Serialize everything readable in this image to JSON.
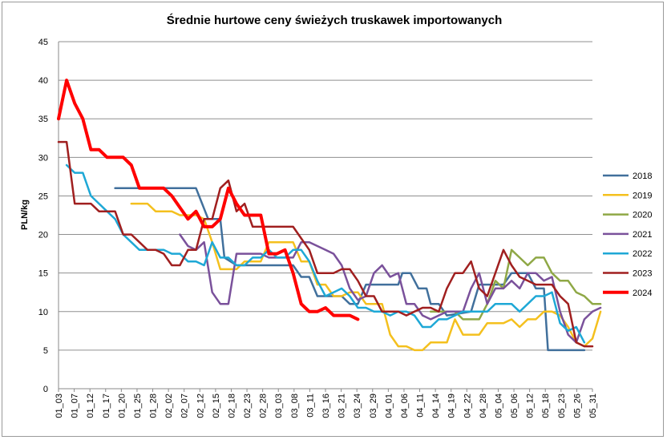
{
  "chart_data": {
    "type": "line",
    "title": "Średnie hurtowe ceny świeżych truskawek importowanych",
    "xlabel": "",
    "ylabel": "PLN/kg",
    "ylim": [
      0,
      45
    ],
    "yticks": [
      0,
      5,
      10,
      15,
      20,
      25,
      30,
      35,
      40,
      45
    ],
    "grid": true,
    "legend": "right",
    "x_ticks": [
      "01_03",
      "01_07",
      "01_12",
      "01_17",
      "01_20",
      "01_25",
      "01_28",
      "02_02",
      "02_07",
      "02_12",
      "02_15",
      "02_18",
      "02_23",
      "02_28",
      "03_03",
      "03_08",
      "03_11",
      "03_16",
      "03_21",
      "03_24",
      "03_29",
      "04_01",
      "04_06",
      "04_11",
      "04_14",
      "04_19",
      "04_22",
      "04_28",
      "05_04",
      "05_06",
      "05_12",
      "05_18",
      "05_23",
      "05_26",
      "05_31"
    ],
    "series": [
      {
        "name": "2018",
        "color": "#41709c",
        "width": 2.5,
        "points": [
          [
            7,
            26
          ],
          [
            17,
            26
          ],
          [
            18.5,
            22
          ],
          [
            20,
            22
          ],
          [
            20.5,
            17
          ],
          [
            22,
            16
          ],
          [
            29,
            16
          ],
          [
            30,
            14.5
          ],
          [
            31,
            14.5
          ],
          [
            32,
            12
          ],
          [
            35,
            12
          ],
          [
            36,
            11
          ],
          [
            37,
            11
          ],
          [
            38,
            13.5
          ],
          [
            42,
            13.5
          ],
          [
            42.5,
            15
          ],
          [
            43.5,
            15
          ],
          [
            44.5,
            13
          ],
          [
            45.5,
            13
          ],
          [
            46,
            11
          ],
          [
            47,
            11
          ],
          [
            48,
            9.5
          ],
          [
            51,
            10
          ],
          [
            52,
            13.5
          ],
          [
            55,
            13.5
          ],
          [
            56,
            15
          ],
          [
            58,
            15
          ],
          [
            59,
            13
          ],
          [
            60,
            13
          ],
          [
            60.5,
            5
          ],
          [
            65,
            5
          ]
        ]
      },
      {
        "name": "2019",
        "color": "#f4c01e",
        "width": 2.5,
        "points": [
          [
            9,
            24
          ],
          [
            11,
            24
          ],
          [
            12,
            23
          ],
          [
            14,
            23
          ],
          [
            15,
            22.5
          ],
          [
            17,
            22.5
          ],
          [
            18,
            22
          ],
          [
            19,
            19
          ],
          [
            20,
            15.5
          ],
          [
            22,
            15.5
          ],
          [
            23,
            16.5
          ],
          [
            25,
            16.5
          ],
          [
            26,
            19
          ],
          [
            29,
            19
          ],
          [
            30,
            16.5
          ],
          [
            31,
            16.5
          ],
          [
            32,
            13.5
          ],
          [
            33,
            13.5
          ],
          [
            34,
            12
          ],
          [
            35,
            12
          ],
          [
            36,
            12.5
          ],
          [
            37,
            12.5
          ],
          [
            38,
            11
          ],
          [
            39,
            11
          ],
          [
            40,
            11
          ],
          [
            41,
            7
          ],
          [
            42,
            5.5
          ],
          [
            43,
            5.5
          ],
          [
            44,
            5
          ],
          [
            45,
            5
          ],
          [
            46,
            6
          ],
          [
            48,
            6
          ],
          [
            49,
            9
          ],
          [
            50,
            7
          ],
          [
            52,
            7
          ],
          [
            53,
            8.5
          ],
          [
            55,
            8.5
          ],
          [
            56,
            9
          ],
          [
            57,
            8
          ],
          [
            58,
            9
          ],
          [
            59,
            9
          ],
          [
            60,
            10
          ],
          [
            61,
            10
          ],
          [
            62,
            9.5
          ],
          [
            63,
            8
          ],
          [
            64,
            6
          ],
          [
            65,
            5.5
          ],
          [
            66,
            6.5
          ],
          [
            67,
            10
          ]
        ]
      },
      {
        "name": "2020",
        "color": "#8fa846",
        "width": 2.5,
        "points": [
          [
            46,
            10
          ],
          [
            49,
            10
          ],
          [
            50,
            9
          ],
          [
            52,
            9
          ],
          [
            53,
            11
          ],
          [
            54,
            14
          ],
          [
            55,
            13
          ],
          [
            56,
            18
          ],
          [
            57,
            17
          ],
          [
            58,
            16
          ],
          [
            59,
            17
          ],
          [
            60,
            17
          ],
          [
            61,
            15
          ],
          [
            62,
            14
          ],
          [
            63,
            14
          ],
          [
            64,
            12.5
          ],
          [
            65,
            12
          ],
          [
            66,
            11
          ],
          [
            67,
            11
          ]
        ]
      },
      {
        "name": "2021",
        "color": "#7a519b",
        "width": 2.5,
        "points": [
          [
            15,
            20
          ],
          [
            16,
            18.5
          ],
          [
            17,
            18
          ],
          [
            18,
            19
          ],
          [
            19,
            12.5
          ],
          [
            20,
            11
          ],
          [
            21,
            11
          ],
          [
            22,
            17.5
          ],
          [
            25,
            17.5
          ],
          [
            26,
            17
          ],
          [
            29,
            17
          ],
          [
            30,
            19
          ],
          [
            31,
            19
          ],
          [
            32,
            18.5
          ],
          [
            33,
            18
          ],
          [
            34,
            17.5
          ],
          [
            35,
            16
          ],
          [
            36,
            13
          ],
          [
            37,
            11.5
          ],
          [
            38,
            12
          ],
          [
            39,
            15
          ],
          [
            40,
            16
          ],
          [
            41,
            14.5
          ],
          [
            42,
            15
          ],
          [
            43,
            11
          ],
          [
            44,
            11
          ],
          [
            45,
            9.5
          ],
          [
            46,
            9
          ],
          [
            47,
            9.5
          ],
          [
            48,
            10
          ],
          [
            50,
            10
          ],
          [
            51,
            13
          ],
          [
            52,
            15
          ],
          [
            53,
            11
          ],
          [
            54,
            13
          ],
          [
            55,
            13
          ],
          [
            56,
            14
          ],
          [
            57,
            13
          ],
          [
            58,
            15
          ],
          [
            59,
            15
          ],
          [
            60,
            14
          ],
          [
            61,
            14.5
          ],
          [
            62,
            10
          ],
          [
            63,
            7
          ],
          [
            64,
            6
          ],
          [
            65,
            9
          ],
          [
            66,
            10
          ],
          [
            67,
            10.5
          ]
        ]
      },
      {
        "name": "2022",
        "color": "#1ea8d6",
        "width": 2.5,
        "points": [
          [
            1,
            29
          ],
          [
            2,
            28
          ],
          [
            3,
            28
          ],
          [
            4,
            25
          ],
          [
            5,
            24
          ],
          [
            6,
            23
          ],
          [
            7,
            22
          ],
          [
            8,
            20
          ],
          [
            9,
            19
          ],
          [
            10,
            18
          ],
          [
            13,
            18
          ],
          [
            14,
            17.5
          ],
          [
            15,
            17.5
          ],
          [
            16,
            16.5
          ],
          [
            17,
            16.5
          ],
          [
            18,
            16
          ],
          [
            19,
            19
          ],
          [
            20,
            17
          ],
          [
            21,
            17
          ],
          [
            22,
            16
          ],
          [
            23,
            16
          ],
          [
            24,
            17
          ],
          [
            25,
            17
          ],
          [
            26,
            18
          ],
          [
            27,
            17
          ],
          [
            28,
            17
          ],
          [
            29,
            18
          ],
          [
            30,
            18
          ],
          [
            31,
            16.5
          ],
          [
            32,
            14
          ],
          [
            33,
            12
          ],
          [
            34,
            12.5
          ],
          [
            35,
            13
          ],
          [
            36,
            12
          ],
          [
            37,
            10.5
          ],
          [
            38,
            10.5
          ],
          [
            39,
            10
          ],
          [
            40,
            10
          ],
          [
            41,
            9.5
          ],
          [
            42,
            10
          ],
          [
            43,
            10
          ],
          [
            44,
            9.5
          ],
          [
            45,
            8
          ],
          [
            46,
            8
          ],
          [
            47,
            9
          ],
          [
            48,
            9
          ],
          [
            49,
            9.5
          ],
          [
            50,
            10
          ],
          [
            51,
            10
          ],
          [
            52,
            10
          ],
          [
            53,
            10
          ],
          [
            54,
            11
          ],
          [
            55,
            11
          ],
          [
            56,
            11
          ],
          [
            57,
            10
          ],
          [
            58,
            11
          ],
          [
            59,
            12
          ],
          [
            60,
            12
          ],
          [
            61,
            12.5
          ],
          [
            62,
            8.5
          ],
          [
            63,
            7.5
          ],
          [
            64,
            8
          ],
          [
            65,
            6
          ]
        ]
      },
      {
        "name": "2023",
        "color": "#a01f1f",
        "width": 2.5,
        "points": [
          [
            0,
            32
          ],
          [
            1,
            32
          ],
          [
            2,
            24
          ],
          [
            4,
            24
          ],
          [
            5,
            23
          ],
          [
            7,
            23
          ],
          [
            8,
            20
          ],
          [
            9,
            20
          ],
          [
            10,
            19
          ],
          [
            11,
            18
          ],
          [
            12,
            18
          ],
          [
            13,
            17.5
          ],
          [
            14,
            16
          ],
          [
            15,
            16
          ],
          [
            16,
            18
          ],
          [
            17,
            18
          ],
          [
            18,
            22
          ],
          [
            19,
            22
          ],
          [
            20,
            26
          ],
          [
            21,
            27
          ],
          [
            22,
            23
          ],
          [
            23,
            24
          ],
          [
            24,
            21
          ],
          [
            29,
            21
          ],
          [
            30,
            19.5
          ],
          [
            31,
            18
          ],
          [
            32,
            15
          ],
          [
            33,
            15
          ],
          [
            34,
            15
          ],
          [
            35,
            15.5
          ],
          [
            36,
            15.5
          ],
          [
            37,
            14
          ],
          [
            38,
            12
          ],
          [
            39,
            12
          ],
          [
            40,
            10
          ],
          [
            41,
            10
          ],
          [
            42,
            10
          ],
          [
            43,
            9.5
          ],
          [
            44,
            10
          ],
          [
            45,
            10.5
          ],
          [
            46,
            10.5
          ],
          [
            47,
            10
          ],
          [
            48,
            13
          ],
          [
            49,
            15
          ],
          [
            50,
            15
          ],
          [
            51,
            16.5
          ],
          [
            52,
            13
          ],
          [
            53,
            12
          ],
          [
            54,
            15
          ],
          [
            55,
            18
          ],
          [
            56,
            16
          ],
          [
            57,
            14.5
          ],
          [
            58,
            14
          ],
          [
            59,
            13.5
          ],
          [
            60,
            13.5
          ],
          [
            61,
            13.5
          ],
          [
            62,
            12
          ],
          [
            63,
            11
          ],
          [
            64,
            6
          ],
          [
            65,
            5.5
          ],
          [
            66,
            5.5
          ]
        ]
      },
      {
        "name": "2024",
        "color": "#ff0000",
        "width": 4,
        "points": [
          [
            0,
            35
          ],
          [
            1,
            40
          ],
          [
            2,
            37
          ],
          [
            3,
            35
          ],
          [
            4,
            31
          ],
          [
            5,
            31
          ],
          [
            6,
            30
          ],
          [
            7,
            30
          ],
          [
            8,
            30
          ],
          [
            9,
            29
          ],
          [
            10,
            26
          ],
          [
            11,
            26
          ],
          [
            12,
            26
          ],
          [
            13,
            26
          ],
          [
            14,
            25
          ],
          [
            15,
            23.5
          ],
          [
            16,
            22
          ],
          [
            17,
            23
          ],
          [
            18,
            21
          ],
          [
            19,
            21
          ],
          [
            20,
            22
          ],
          [
            21,
            26
          ],
          [
            22,
            24
          ],
          [
            23,
            22.5
          ],
          [
            24,
            22.5
          ],
          [
            25,
            22.5
          ],
          [
            26,
            17.5
          ],
          [
            27,
            17.5
          ],
          [
            28,
            18
          ],
          [
            29,
            15
          ],
          [
            30,
            11
          ],
          [
            31,
            10
          ],
          [
            32,
            10
          ],
          [
            33,
            10.5
          ],
          [
            34,
            9.5
          ],
          [
            35,
            9.5
          ],
          [
            36,
            9.5
          ],
          [
            37,
            9
          ]
        ]
      }
    ]
  }
}
